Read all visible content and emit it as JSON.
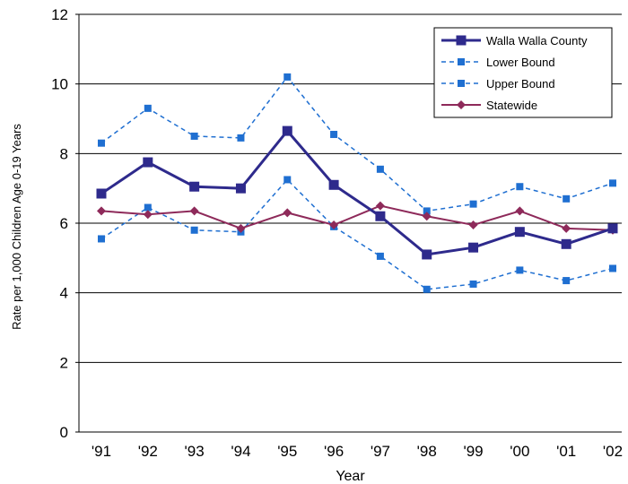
{
  "chart_data": {
    "type": "line",
    "xlabel": "Year",
    "ylabel": "Rate per 1,000 Children Age 0-19 Years",
    "categories": [
      "'91",
      "'92",
      "'93",
      "'94",
      "'95",
      "'96",
      "'97",
      "'98",
      "'99",
      "'00",
      "'01",
      "'02"
    ],
    "ylim": [
      0,
      12
    ],
    "yticks": [
      0,
      2,
      4,
      6,
      8,
      10,
      12
    ],
    "grid": true,
    "legend_position": "top-right",
    "series": [
      {
        "name": "Walla Walla County",
        "style": "solid-thick",
        "marker": "square",
        "color": "#2e2a8c",
        "values": [
          6.85,
          7.75,
          7.05,
          7.0,
          8.65,
          7.1,
          6.2,
          5.1,
          5.3,
          5.75,
          5.4,
          5.85
        ]
      },
      {
        "name": "Lower Bound",
        "style": "dashed",
        "marker": "square-small",
        "color": "#1f6fd1",
        "values": [
          5.55,
          6.45,
          5.8,
          5.75,
          7.25,
          5.9,
          5.05,
          4.1,
          4.25,
          4.65,
          4.35,
          4.7
        ]
      },
      {
        "name": "Upper Bound",
        "style": "dashed",
        "marker": "square-small",
        "color": "#1f6fd1",
        "values": [
          8.3,
          9.3,
          8.5,
          8.45,
          10.2,
          8.55,
          7.55,
          6.35,
          6.55,
          7.05,
          6.7,
          7.15
        ]
      },
      {
        "name": "Statewide",
        "style": "solid",
        "marker": "diamond",
        "color": "#8e2a5a",
        "values": [
          6.35,
          6.25,
          6.35,
          5.85,
          6.3,
          5.95,
          6.5,
          6.2,
          5.95,
          6.35,
          5.85,
          5.8
        ]
      }
    ]
  }
}
